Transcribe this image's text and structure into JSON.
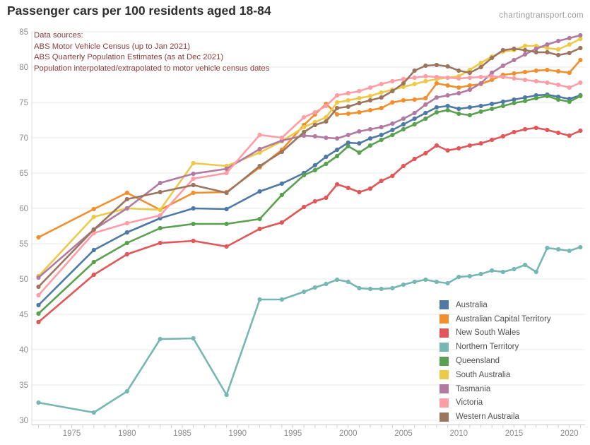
{
  "page": {
    "title": "Passenger cars per 100 residents aged 18-84",
    "watermark": "chartingtransport.com"
  },
  "annotation": {
    "lines": [
      "Data sources:",
      "ABS Motor Vehicle Census (up to Jan 2021)",
      "ABS Quarterly Population Estimates (as at Dec 2021)",
      "Population interpolated/extrapolated to motor vehicle census dates"
    ]
  },
  "colors": {
    "title": "#2e2e2e",
    "annotation": "#8b3a3a",
    "watermark": "#9b9b9b",
    "tick_label": "#8c8c8c",
    "gridline": "#e8e8e8",
    "x_axis_line": "#c9c9c9",
    "y_axis_line": "#dcdcdc",
    "tick_mark": "#cbcbcb",
    "legend_text": "#4f4f4f",
    "background": "#ffffff"
  },
  "chart_data": {
    "type": "line",
    "title": "Passenger cars per 100 residents aged 18-84",
    "xlabel": "",
    "ylabel": "",
    "grid": "horizontal",
    "legend_position": "inside-bottom-right",
    "ylim": [
      30,
      85
    ],
    "y_ticks": [
      30,
      35,
      40,
      45,
      50,
      55,
      60,
      65,
      70,
      75,
      80,
      85
    ],
    "x_ticks": [
      1975,
      1980,
      1985,
      1990,
      1995,
      2000,
      2005,
      2010,
      2015,
      2020
    ],
    "x_minor_tick_step": 1,
    "x": [
      1972,
      1977,
      1980,
      1983,
      1986,
      1989,
      1992,
      1994,
      1996,
      1997,
      1998,
      1999,
      2000,
      2001,
      2002,
      2003,
      2004,
      2005,
      2006,
      2007,
      2008,
      2009,
      2010,
      2011,
      2012,
      2013,
      2014,
      2015,
      2016,
      2017,
      2018,
      2019,
      2020,
      2021
    ],
    "series": [
      {
        "name": "Australia",
        "color": "#4e79a7",
        "values": [
          46.3,
          54.1,
          56.6,
          58.6,
          60.0,
          59.9,
          62.4,
          63.5,
          65.0,
          66.1,
          67.3,
          68.3,
          69.3,
          69.2,
          69.9,
          70.4,
          71.1,
          71.9,
          72.7,
          73.5,
          74.3,
          74.5,
          74.1,
          74.3,
          74.5,
          74.8,
          75.1,
          75.4,
          75.7,
          76.0,
          76.1,
          75.8,
          75.5,
          76.0
        ]
      },
      {
        "name": "Australian Capital Territory",
        "color": "#f28e2b",
        "values": [
          55.9,
          59.9,
          62.2,
          59.8,
          62.2,
          62.3,
          65.8,
          68.3,
          71.8,
          73.3,
          74.8,
          73.3,
          73.4,
          73.6,
          73.9,
          74.2,
          75.0,
          75.3,
          75.4,
          75.6,
          77.7,
          77.4,
          77.1,
          77.4,
          77.6,
          78.2,
          78.9,
          79.1,
          79.3,
          79.5,
          79.6,
          79.4,
          79.2,
          81.0
        ]
      },
      {
        "name": "New South Wales",
        "color": "#e15759",
        "values": [
          43.9,
          50.6,
          53.5,
          55.1,
          55.4,
          54.6,
          57.1,
          58.0,
          60.2,
          61.0,
          61.5,
          63.4,
          62.9,
          62.3,
          62.8,
          63.9,
          64.6,
          66.0,
          67.0,
          67.8,
          68.9,
          68.2,
          68.5,
          68.9,
          69.2,
          69.7,
          70.2,
          70.8,
          71.2,
          71.4,
          71.1,
          70.7,
          70.3,
          71.0
        ]
      },
      {
        "name": "Northern Territory",
        "color": "#76b7b2",
        "values": [
          32.5,
          31.1,
          34.1,
          41.5,
          41.6,
          33.6,
          47.1,
          47.1,
          48.2,
          48.8,
          49.3,
          49.9,
          49.6,
          48.7,
          48.6,
          48.6,
          48.7,
          49.2,
          49.6,
          49.9,
          49.6,
          49.4,
          50.3,
          50.4,
          50.7,
          51.2,
          51.0,
          51.4,
          52.0,
          51.0,
          54.4,
          54.2,
          54.0,
          54.5
        ]
      },
      {
        "name": "Queensland",
        "color": "#59a14f",
        "values": [
          45.1,
          52.4,
          55.1,
          57.2,
          57.8,
          57.8,
          58.5,
          61.9,
          64.7,
          65.4,
          66.3,
          67.4,
          68.8,
          67.9,
          68.9,
          69.7,
          70.4,
          71.2,
          71.9,
          72.7,
          73.6,
          73.9,
          73.4,
          73.2,
          73.7,
          74.1,
          74.5,
          74.9,
          75.2,
          75.6,
          75.9,
          75.4,
          75.1,
          75.9
        ]
      },
      {
        "name": "South Australia",
        "color": "#edc948",
        "values": [
          50.4,
          58.8,
          60.0,
          59.8,
          66.4,
          66.0,
          67.9,
          69.5,
          71.5,
          72.2,
          72.9,
          75.0,
          75.3,
          75.6,
          75.9,
          76.4,
          76.8,
          77.2,
          77.6,
          78.0,
          78.3,
          78.5,
          78.7,
          79.6,
          80.6,
          81.5,
          82.2,
          82.4,
          83.0,
          83.0,
          82.7,
          82.5,
          83.2,
          84.0
        ]
      },
      {
        "name": "Tasmania",
        "color": "#b07aa1",
        "values": [
          50.2,
          57.0,
          60.0,
          63.6,
          64.9,
          65.6,
          68.4,
          69.6,
          70.3,
          70.2,
          70.0,
          69.9,
          70.4,
          70.9,
          71.2,
          71.5,
          72.0,
          72.7,
          73.5,
          74.7,
          75.7,
          76.0,
          76.3,
          76.8,
          77.7,
          79.2,
          80.2,
          81.0,
          81.8,
          82.6,
          83.2,
          83.7,
          84.1,
          84.5
        ]
      },
      {
        "name": "Victoria",
        "color": "#ff9da7",
        "values": [
          47.7,
          56.5,
          57.9,
          59.0,
          64.2,
          65.0,
          70.4,
          70.0,
          72.9,
          73.6,
          74.5,
          76.0,
          76.3,
          76.6,
          77.1,
          77.6,
          78.0,
          78.3,
          78.5,
          78.7,
          78.6,
          78.5,
          78.4,
          78.5,
          78.6,
          78.7,
          78.6,
          78.4,
          78.2,
          78.0,
          77.8,
          77.5,
          77.1,
          77.8
        ]
      },
      {
        "name": "Western Austraila",
        "color": "#9c755f",
        "values": [
          48.9,
          57.0,
          61.3,
          62.3,
          63.3,
          62.2,
          66.0,
          68.0,
          70.8,
          71.8,
          72.3,
          74.2,
          74.4,
          74.9,
          75.3,
          75.7,
          76.6,
          77.7,
          79.5,
          80.2,
          80.3,
          80.1,
          79.5,
          79.2,
          80.0,
          81.3,
          82.4,
          82.6,
          82.4,
          82.1,
          82.1,
          81.7,
          82.0,
          82.7
        ]
      }
    ]
  }
}
